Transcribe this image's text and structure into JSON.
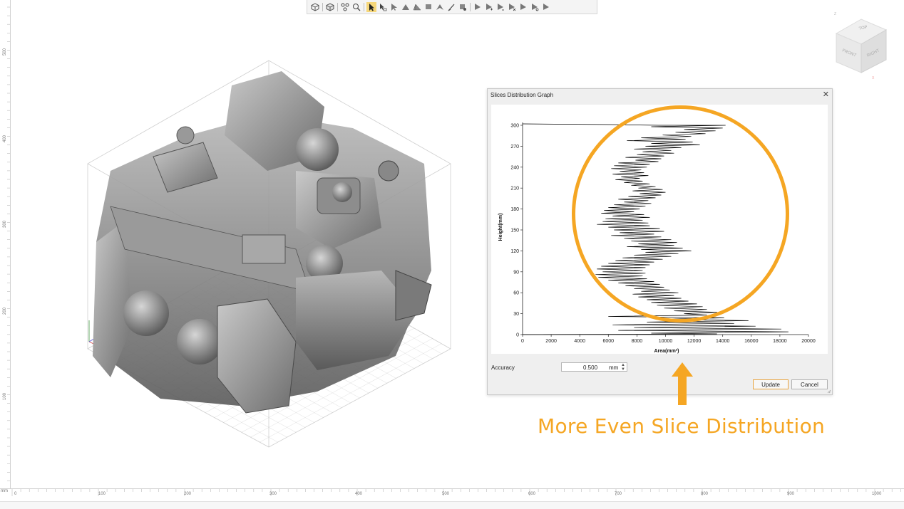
{
  "toolbar": {
    "icons": [
      "cube-view-icon",
      "cube-iso-icon",
      "explode-icon",
      "zoom-icon",
      "select-arrow-icon",
      "select-area-icon",
      "select-face-icon",
      "select-body-icon",
      "select-group-icon",
      "select-box-icon",
      "select-lasso-icon",
      "select-brush-icon",
      "select-paint-icon",
      "select-plane-icon",
      "select-plus-icon",
      "select-minus-icon",
      "select-x-icon",
      "select-ok-icon",
      "select-cycle-icon",
      "select-check-icon"
    ]
  },
  "ruler": {
    "unit": "mm",
    "bottom_ticks": [
      "0",
      "100",
      "200",
      "300",
      "400",
      "500",
      "600",
      "700",
      "800",
      "900",
      "1000"
    ],
    "left_ticks": [
      "500",
      "400",
      "300",
      "200",
      "100"
    ]
  },
  "view_cube": {
    "top": "TOP",
    "front": "FRONT",
    "right": "RIGHT",
    "axis_z": "Z",
    "axis_x": "X"
  },
  "dialog": {
    "title": "Slices Distribution Graph",
    "accuracy_label": "Accuracy",
    "accuracy_value": "0.500",
    "accuracy_unit": "mm",
    "update_button": "Update",
    "cancel_button": "Cancel"
  },
  "chart_data": {
    "type": "line",
    "xlabel": "Area(mm²)",
    "ylabel": "Height(mm)",
    "xlim": [
      0,
      20000
    ],
    "ylim": [
      0,
      300
    ],
    "xticks": [
      0,
      2000,
      4000,
      6000,
      8000,
      10000,
      12000,
      14000,
      16000,
      18000,
      20000
    ],
    "yticks": [
      0,
      30,
      60,
      90,
      120,
      150,
      180,
      210,
      240,
      270,
      300
    ],
    "series": [
      {
        "color": "#000000",
        "points": [
          [
            0,
            302
          ],
          [
            6200,
            301
          ],
          [
            9500,
            300
          ],
          [
            14200,
            300
          ],
          [
            9000,
            298
          ],
          [
            14000,
            296
          ],
          [
            11300,
            294
          ],
          [
            13500,
            292
          ],
          [
            10700,
            290
          ],
          [
            12800,
            288
          ],
          [
            9800,
            286
          ],
          [
            11800,
            284
          ],
          [
            8300,
            282
          ],
          [
            11400,
            280
          ],
          [
            7300,
            278
          ],
          [
            11900,
            276
          ],
          [
            9000,
            274
          ],
          [
            12400,
            272
          ],
          [
            8600,
            270
          ],
          [
            11100,
            268
          ],
          [
            7800,
            266
          ],
          [
            10400,
            264
          ],
          [
            8400,
            262
          ],
          [
            10600,
            260
          ],
          [
            8000,
            258
          ],
          [
            9900,
            256
          ],
          [
            7200,
            254
          ],
          [
            9700,
            252
          ],
          [
            7900,
            250
          ],
          [
            9500,
            248
          ],
          [
            6700,
            246
          ],
          [
            8900,
            244
          ],
          [
            6400,
            242
          ],
          [
            8700,
            240
          ],
          [
            6200,
            238
          ],
          [
            8300,
            236
          ],
          [
            6800,
            234
          ],
          [
            8500,
            232
          ],
          [
            6300,
            230
          ],
          [
            8800,
            228
          ],
          [
            6900,
            226
          ],
          [
            8200,
            224
          ],
          [
            6500,
            222
          ],
          [
            8400,
            220
          ],
          [
            7100,
            218
          ],
          [
            8900,
            216
          ],
          [
            7600,
            214
          ],
          [
            9300,
            212
          ],
          [
            8100,
            210
          ],
          [
            9800,
            208
          ],
          [
            7700,
            206
          ],
          [
            10000,
            204
          ],
          [
            8200,
            202
          ],
          [
            9700,
            200
          ],
          [
            7400,
            198
          ],
          [
            9300,
            196
          ],
          [
            6700,
            194
          ],
          [
            8800,
            192
          ],
          [
            7100,
            190
          ],
          [
            9000,
            188
          ],
          [
            6400,
            186
          ],
          [
            8600,
            184
          ],
          [
            6000,
            182
          ],
          [
            8200,
            180
          ],
          [
            5700,
            178
          ],
          [
            7800,
            176
          ],
          [
            5500,
            174
          ],
          [
            8500,
            172
          ],
          [
            6300,
            170
          ],
          [
            8900,
            168
          ],
          [
            5800,
            166
          ],
          [
            8400,
            164
          ],
          [
            5600,
            162
          ],
          [
            8800,
            160
          ],
          [
            5200,
            158
          ],
          [
            8900,
            156
          ],
          [
            6000,
            154
          ],
          [
            9600,
            152
          ],
          [
            6400,
            150
          ],
          [
            9900,
            148
          ],
          [
            6800,
            146
          ],
          [
            9200,
            144
          ],
          [
            6200,
            142
          ],
          [
            9700,
            140
          ],
          [
            7100,
            138
          ],
          [
            10400,
            136
          ],
          [
            7600,
            134
          ],
          [
            10800,
            132
          ],
          [
            8100,
            130
          ],
          [
            10600,
            128
          ],
          [
            7300,
            126
          ],
          [
            11200,
            124
          ],
          [
            8300,
            122
          ],
          [
            11800,
            120
          ],
          [
            8600,
            118
          ],
          [
            10900,
            116
          ],
          [
            7800,
            114
          ],
          [
            10400,
            112
          ],
          [
            7000,
            110
          ],
          [
            9800,
            108
          ],
          [
            6500,
            106
          ],
          [
            9200,
            104
          ],
          [
            6000,
            102
          ],
          [
            8900,
            100
          ],
          [
            5500,
            98
          ],
          [
            8600,
            96
          ],
          [
            5200,
            94
          ],
          [
            8400,
            92
          ],
          [
            5600,
            90
          ],
          [
            8600,
            88
          ],
          [
            5100,
            86
          ],
          [
            8400,
            84
          ],
          [
            5300,
            82
          ],
          [
            8700,
            80
          ],
          [
            6000,
            78
          ],
          [
            9200,
            76
          ],
          [
            6700,
            74
          ],
          [
            9600,
            72
          ],
          [
            7200,
            70
          ],
          [
            9900,
            68
          ],
          [
            7800,
            66
          ],
          [
            10300,
            64
          ],
          [
            8300,
            62
          ],
          [
            10900,
            60
          ],
          [
            7700,
            58
          ],
          [
            10600,
            56
          ],
          [
            8100,
            54
          ],
          [
            11100,
            52
          ],
          [
            8700,
            50
          ],
          [
            11600,
            48
          ],
          [
            9000,
            46
          ],
          [
            12200,
            44
          ],
          [
            9400,
            42
          ],
          [
            12600,
            40
          ],
          [
            9900,
            38
          ],
          [
            12900,
            36
          ],
          [
            10600,
            34
          ],
          [
            13600,
            32
          ],
          [
            11300,
            30
          ],
          [
            12900,
            28
          ],
          [
            6000,
            26
          ],
          [
            14100,
            24
          ],
          [
            9700,
            22
          ],
          [
            15800,
            20
          ],
          [
            8700,
            18
          ],
          [
            14800,
            16
          ],
          [
            6300,
            14
          ],
          [
            16300,
            12
          ],
          [
            7800,
            10
          ],
          [
            18100,
            8
          ],
          [
            6700,
            6
          ],
          [
            18600,
            4
          ],
          [
            9000,
            2
          ],
          [
            13600,
            1
          ],
          [
            0,
            0
          ]
        ]
      }
    ]
  },
  "annotation": {
    "caption": "More Even Slice Distribution",
    "color": "#f5a623"
  }
}
